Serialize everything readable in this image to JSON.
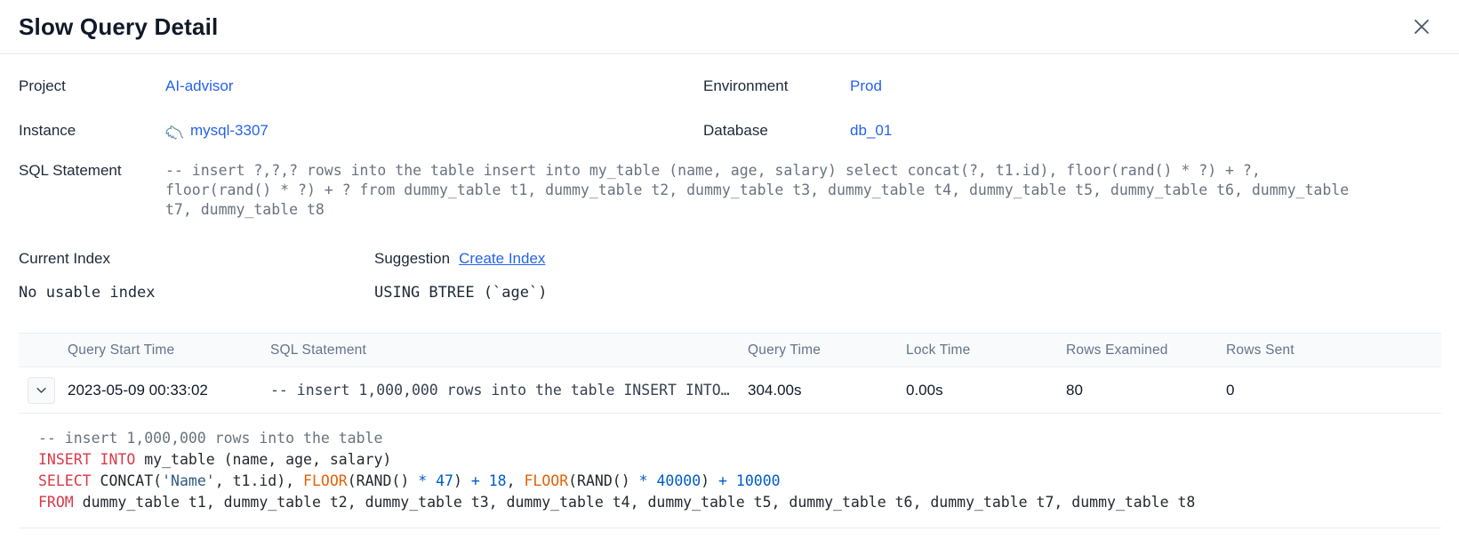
{
  "dialog": {
    "title": "Slow Query Detail"
  },
  "fields": {
    "project": {
      "label": "Project",
      "value": "AI-advisor"
    },
    "environment": {
      "label": "Environment",
      "value": "Prod"
    },
    "instance": {
      "label": "Instance",
      "value": "mysql-3307"
    },
    "database": {
      "label": "Database",
      "value": "db_01"
    },
    "sql_statement": {
      "label": "SQL Statement",
      "value": "-- insert ?,?,? rows into the table insert into my_table (name, age, salary) select concat(?, t1.id), floor(rand() * ?) + ?, floor(rand() * ?) + ? from dummy_table t1, dummy_table t2, dummy_table t3, dummy_table t4, dummy_table t5, dummy_table t6, dummy_table t7, dummy_table t8"
    },
    "current_index": {
      "label": "Current Index",
      "value": "No usable index"
    },
    "suggestion": {
      "label": "Suggestion",
      "link_label": "Create Index",
      "value": "USING BTREE (`age`)"
    }
  },
  "table": {
    "headers": [
      "Query Start Time",
      "SQL Statement",
      "Query Time",
      "Lock Time",
      "Rows Examined",
      "Rows Sent"
    ],
    "row": {
      "query_start_time": "2023-05-09 00:33:02",
      "sql_statement": "-- insert 1,000,000 rows into the table INSERT INTO…",
      "query_time": "304.00s",
      "lock_time": "0.00s",
      "rows_examined": "80",
      "rows_sent": "0"
    }
  },
  "expanded_sql": {
    "lines": [
      [
        {
          "t": "-- insert 1,000,000 rows into the table",
          "c": "comment"
        }
      ],
      [
        {
          "t": "INSERT INTO",
          "c": "keyword"
        },
        {
          "t": " my_table (name, age, salary)",
          "c": "plain"
        }
      ],
      [
        {
          "t": "SELECT",
          "c": "keyword"
        },
        {
          "t": " CONCAT(",
          "c": "plain"
        },
        {
          "t": "'Name'",
          "c": "string"
        },
        {
          "t": ", t1.id), ",
          "c": "plain"
        },
        {
          "t": "FLOOR",
          "c": "builtin"
        },
        {
          "t": "(RAND() ",
          "c": "plain"
        },
        {
          "t": "* 47",
          "c": "number"
        },
        {
          "t": ") ",
          "c": "plain"
        },
        {
          "t": "+ 18",
          "c": "number"
        },
        {
          "t": ", ",
          "c": "plain"
        },
        {
          "t": "FLOOR",
          "c": "builtin"
        },
        {
          "t": "(RAND() ",
          "c": "plain"
        },
        {
          "t": "* 40000",
          "c": "number"
        },
        {
          "t": ") ",
          "c": "plain"
        },
        {
          "t": "+ 10000",
          "c": "number"
        }
      ],
      [
        {
          "t": "FROM",
          "c": "keyword"
        },
        {
          "t": " dummy_table t1, dummy_table t2, dummy_table t3, dummy_table t4, dummy_table t5, dummy_table t6, dummy_table t7, dummy_table t8",
          "c": "plain"
        }
      ]
    ]
  },
  "icons": {
    "close": "close-icon",
    "instance": "mysql-icon",
    "row_expand": "chevron-down-icon"
  },
  "colors": {
    "link": "#2563eb",
    "header_border": "#e5e7eb",
    "table_header_bg": "#f8fafc",
    "table_header_text": "#64748b",
    "sql_muted": "#6b7280",
    "syntax_comment": "#6a737d",
    "syntax_keyword": "#d73a49",
    "syntax_builtin": "#e36209",
    "syntax_number": "#005cc5",
    "syntax_string": "#2f5a83",
    "mysql_icon": "#417e99"
  }
}
